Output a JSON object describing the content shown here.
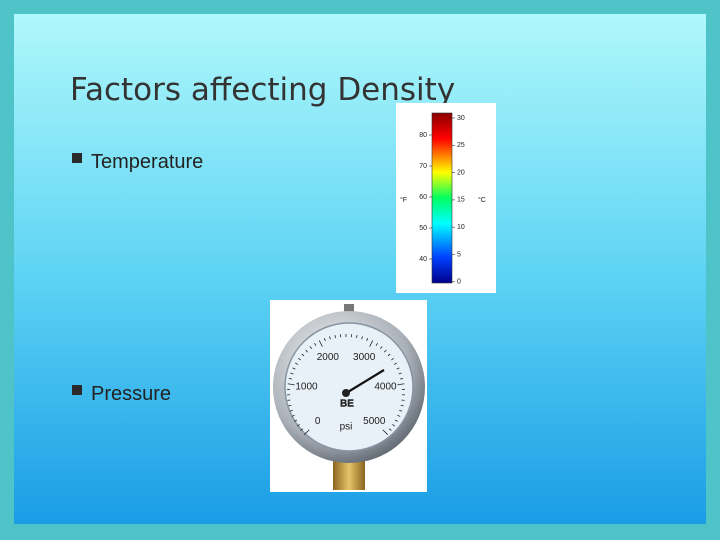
{
  "title": "Factors affecting Density",
  "bullets": [
    "Temperature",
    "Pressure"
  ],
  "thermometer": {
    "fahrenheit_unit": "°F",
    "celsius_unit": "°C",
    "fahrenheit_labels": [
      "80",
      "70",
      "60",
      "50",
      "40"
    ],
    "celsius_labels": [
      "30",
      "25",
      "20",
      "15",
      "10",
      "5",
      "0"
    ]
  },
  "gauge": {
    "labels": [
      "0",
      "1000",
      "2000",
      "3000",
      "4000",
      "5000"
    ],
    "unit": "psi",
    "brand": "BE"
  }
}
